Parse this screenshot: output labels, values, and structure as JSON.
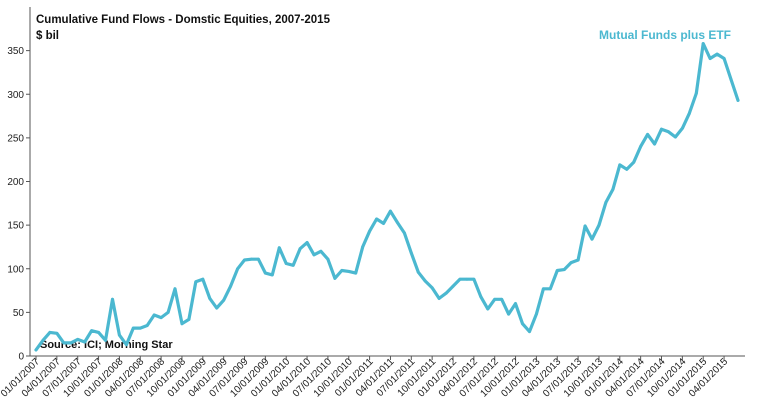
{
  "chart_data": {
    "type": "line",
    "title": "Cumulative Fund Flows - Domstic Equities, 2007-2015",
    "unit_label": "$ bil",
    "source": "Source: ICI; Morning Star",
    "series_color": "#4bb8d0",
    "ylim": [
      0,
      400
    ],
    "yticks": [
      0,
      50,
      100,
      150,
      200,
      250,
      300,
      350
    ],
    "x_tick_labels": [
      "01/01/2007",
      "04/01/2007",
      "07/01/2007",
      "10/01/2007",
      "01/01/2008",
      "04/01/2008",
      "07/01/2008",
      "10/01/2008",
      "01/01/2009",
      "04/01/2009",
      "07/01/2009",
      "10/01/2009",
      "01/01/2010",
      "04/01/2010",
      "07/01/2010",
      "10/01/2010",
      "01/01/2011",
      "04/01/2011",
      "07/01/2011",
      "10/01/2011",
      "01/01/2012",
      "04/01/2012",
      "07/01/2012",
      "10/01/2012",
      "01/01/2013",
      "04/01/2013",
      "07/01/2013",
      "10/01/2013",
      "01/01/2014",
      "04/01/2014",
      "07/01/2014",
      "10/01/2014",
      "01/01/2015",
      "04/01/2015"
    ],
    "series": [
      {
        "name": "Mutual Funds plus  ETF",
        "values": [
          7,
          18,
          27,
          26,
          15,
          15,
          19,
          16,
          29,
          27,
          18,
          65,
          24,
          13,
          32,
          32,
          35,
          47,
          44,
          50,
          77,
          37,
          42,
          85,
          88,
          66,
          55,
          64,
          80,
          100,
          110,
          111,
          111,
          95,
          93,
          124,
          106,
          104,
          123,
          130,
          116,
          120,
          111,
          89,
          98,
          97,
          95,
          125,
          143,
          157,
          152,
          166,
          153,
          141,
          118,
          96,
          86,
          78,
          66,
          72,
          80,
          88,
          88,
          88,
          68,
          54,
          65,
          65,
          48,
          60,
          37,
          28,
          48,
          77,
          77,
          98,
          99,
          107,
          110,
          149,
          134,
          150,
          176,
          191,
          219,
          214,
          222,
          240,
          254,
          243,
          260,
          257,
          251,
          261,
          278,
          301,
          358,
          341,
          346,
          341,
          317,
          293
        ]
      }
    ]
  }
}
